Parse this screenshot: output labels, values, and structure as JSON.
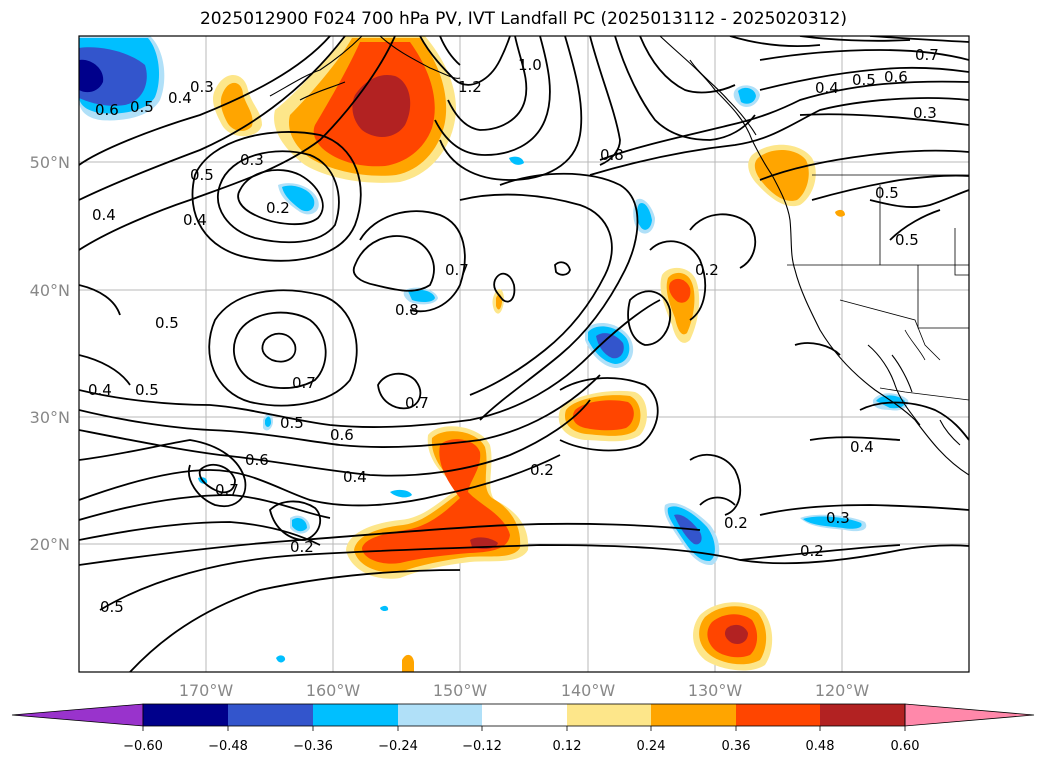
{
  "title": "2025012900 F024 700 hPa PV, IVT Landfall PC (2025013112 - 2025020312)",
  "axes": {
    "lat_labels": [
      "50°N",
      "40°N",
      "30°N",
      "20°N"
    ],
    "lon_labels": [
      "170°W",
      "160°W",
      "150°W",
      "140°W",
      "130°W",
      "120°W"
    ]
  },
  "contour_labels": [
    "0.6",
    "0.3",
    "0.4",
    "0.5",
    "1.2",
    "1.0",
    "0.7",
    "0.4",
    "0.5",
    "0.6",
    "0.3",
    "0.5",
    "0.3",
    "0.2",
    "0.4",
    "0.4",
    "0.8",
    "0.5",
    "0.2",
    "0.7",
    "0.8",
    "0.5",
    "0.5",
    "0.4",
    "0.5",
    "0.7",
    "0.7",
    "0.5",
    "0.6",
    "0.6",
    "0.4",
    "0.7",
    "0.2",
    "0.4",
    "0.2",
    "0.3",
    "0.2",
    "0.2",
    "0.5"
  ],
  "colorbar": {
    "ticks": [
      "−0.60",
      "−0.48",
      "−0.36",
      "−0.24",
      "−0.12",
      "0.12",
      "0.24",
      "0.36",
      "0.48",
      "0.60"
    ],
    "colors": [
      "#9933cc",
      "#00008b",
      "#3355cc",
      "#00bfff",
      "#b0e0f8",
      "#ffffff",
      "#fde68a",
      "#ffa500",
      "#ff4500",
      "#b22222",
      "#ff88aa"
    ]
  }
}
